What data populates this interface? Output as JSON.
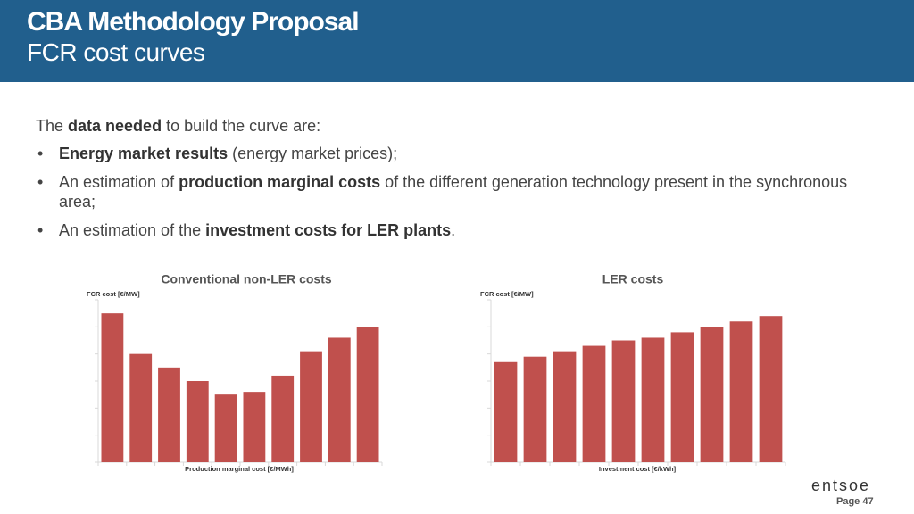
{
  "header": {
    "title": "CBA Methodology Proposal",
    "subtitle": "FCR cost curves"
  },
  "intro": [
    {
      "text": "The ",
      "bold": false
    },
    {
      "text": "data needed",
      "bold": true
    },
    {
      "text": " to build the curve are:",
      "bold": false
    }
  ],
  "bullets": [
    [
      {
        "text": "Energy market results",
        "bold": true
      },
      {
        "text": " (energy market prices);",
        "bold": false
      }
    ],
    [
      {
        "text": "An estimation of ",
        "bold": false
      },
      {
        "text": "production marginal costs",
        "bold": true
      },
      {
        "text": " of the different generation technology present in the synchronous area;",
        "bold": false
      }
    ],
    [
      {
        "text": "An estimation of the ",
        "bold": false
      },
      {
        "text": "investment costs for LER plants",
        "bold": true
      },
      {
        "text": ".",
        "bold": false
      }
    ]
  ],
  "chart_data": [
    {
      "type": "bar",
      "title": "Conventional non-LER costs",
      "y_label": "FCR cost [€/MW]",
      "x_label": "Production marginal cost [€/MWh]",
      "categories": [
        null,
        null,
        null,
        null,
        null,
        null,
        null,
        null,
        null,
        null
      ],
      "values": [
        5.5,
        4.0,
        3.5,
        3.0,
        2.5,
        2.6,
        3.2,
        4.1,
        4.6,
        5.0
      ],
      "color": "#c0504d",
      "ylim": [
        0,
        6
      ]
    },
    {
      "type": "bar",
      "title": "LER costs",
      "y_label": "FCR cost [€/MW]",
      "x_label": "Investment cost [€/kWh]",
      "categories": [
        null,
        null,
        null,
        null,
        null,
        null,
        null,
        null,
        null,
        null
      ],
      "values": [
        3.7,
        3.9,
        4.1,
        4.3,
        4.5,
        4.6,
        4.8,
        5.0,
        5.2,
        5.4
      ],
      "color": "#c0504d",
      "ylim": [
        0,
        6
      ]
    }
  ],
  "footer": {
    "logo": "entsoe",
    "page": "Page 47"
  }
}
